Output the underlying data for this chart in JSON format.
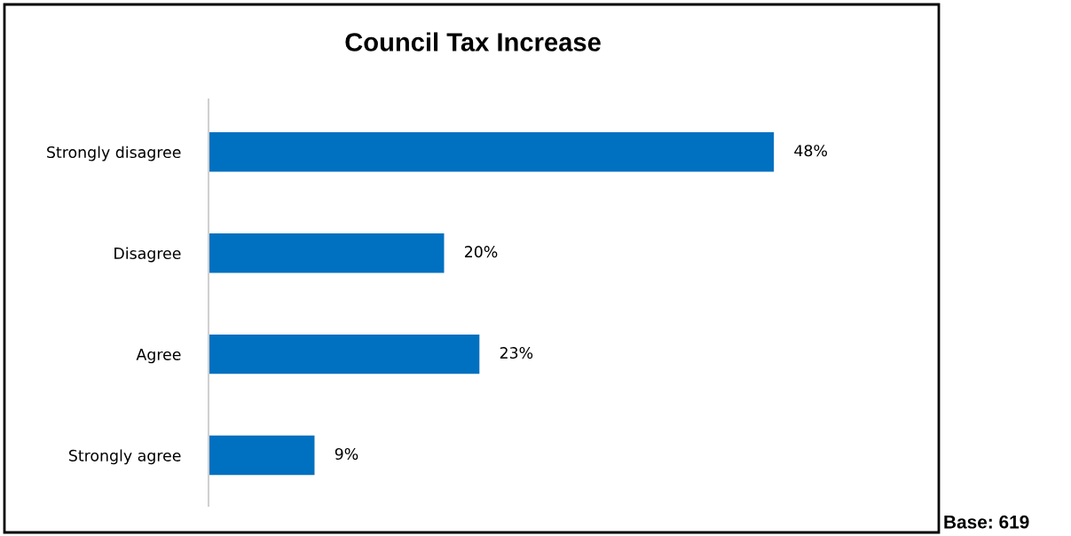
{
  "chart_data": {
    "type": "bar",
    "orientation": "horizontal",
    "title": "Council Tax Increase",
    "categories": [
      "Strongly disagree",
      "Disagree",
      "Agree",
      "Strongly agree"
    ],
    "values": [
      48,
      20,
      23,
      9
    ],
    "color": "#0070c0",
    "value_labels": [
      "48%",
      "20%",
      "23%",
      "9%"
    ],
    "xlim": [
      0,
      62
    ],
    "tick_labels": "y",
    "grid": false,
    "annotations": [
      "Base: 619"
    ]
  }
}
